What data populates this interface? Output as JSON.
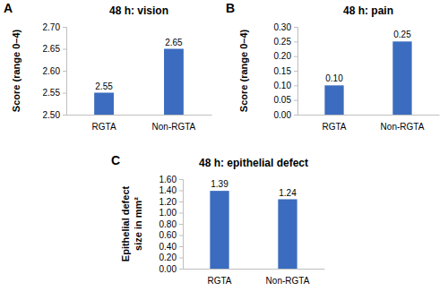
{
  "chart_data": [
    {
      "type": "bar",
      "title": "48 h: vision",
      "annotations": [
        "A"
      ],
      "ylabel": [
        "Score (range 0–4)"
      ],
      "categories": [
        "RGTA",
        "Non-RGTA"
      ],
      "values": [
        2.55,
        2.65
      ],
      "color": "#3b6cbf",
      "ylim": [
        2.5,
        2.7
      ],
      "yticks": [
        {
          "value": 2.5,
          "label": "2.50"
        },
        2.55,
        {
          "value": 2.6,
          "label": "2.60"
        },
        2.65,
        {
          "value": 2.7,
          "label": "2.70"
        }
      ],
      "data_labels": true,
      "grid": false
    },
    {
      "type": "bar",
      "title": "48 h: pain",
      "annotations": [
        "B"
      ],
      "ylabel": [
        "Score (range 0–4)"
      ],
      "categories": [
        "RGTA",
        "Non-RGTA"
      ],
      "values": [
        0.1,
        0.25
      ],
      "value_labels": [
        "0.10",
        "0.25"
      ],
      "color": "#3b6cbf",
      "ylim": [
        0,
        0.3
      ],
      "yticks": [
        {
          "value": 0,
          "label": "0.00"
        },
        0.05,
        {
          "value": 0.1,
          "label": "0.10"
        },
        0.15,
        {
          "value": 0.2,
          "label": "0.20"
        },
        0.25,
        {
          "value": 0.3,
          "label": "0.30"
        }
      ],
      "data_labels": true,
      "grid": false
    },
    {
      "type": "bar",
      "title": "48 h: epithelial defect",
      "annotations": [
        "C"
      ],
      "ylabel": [
        "Epithelial defect",
        "size in mm²"
      ],
      "categories": [
        "RGTA",
        "Non-RGTA"
      ],
      "values": [
        1.39,
        1.24
      ],
      "color": "#3b6cbf",
      "ylim": [
        0,
        1.6
      ],
      "yticks": [
        {
          "value": 0,
          "label": "0.00"
        },
        {
          "value": 0.2,
          "label": "0.20"
        },
        {
          "value": 0.4,
          "label": "0.40"
        },
        {
          "value": 0.6,
          "label": "0.60"
        },
        {
          "value": 0.8,
          "label": "0.80"
        },
        {
          "value": 1,
          "label": "1.00"
        },
        {
          "value": 1.2,
          "label": "1.20"
        },
        {
          "value": 1.4,
          "label": "1.40"
        },
        {
          "value": 1.6,
          "label": "1.60"
        }
      ],
      "data_labels": true,
      "grid": false
    }
  ]
}
